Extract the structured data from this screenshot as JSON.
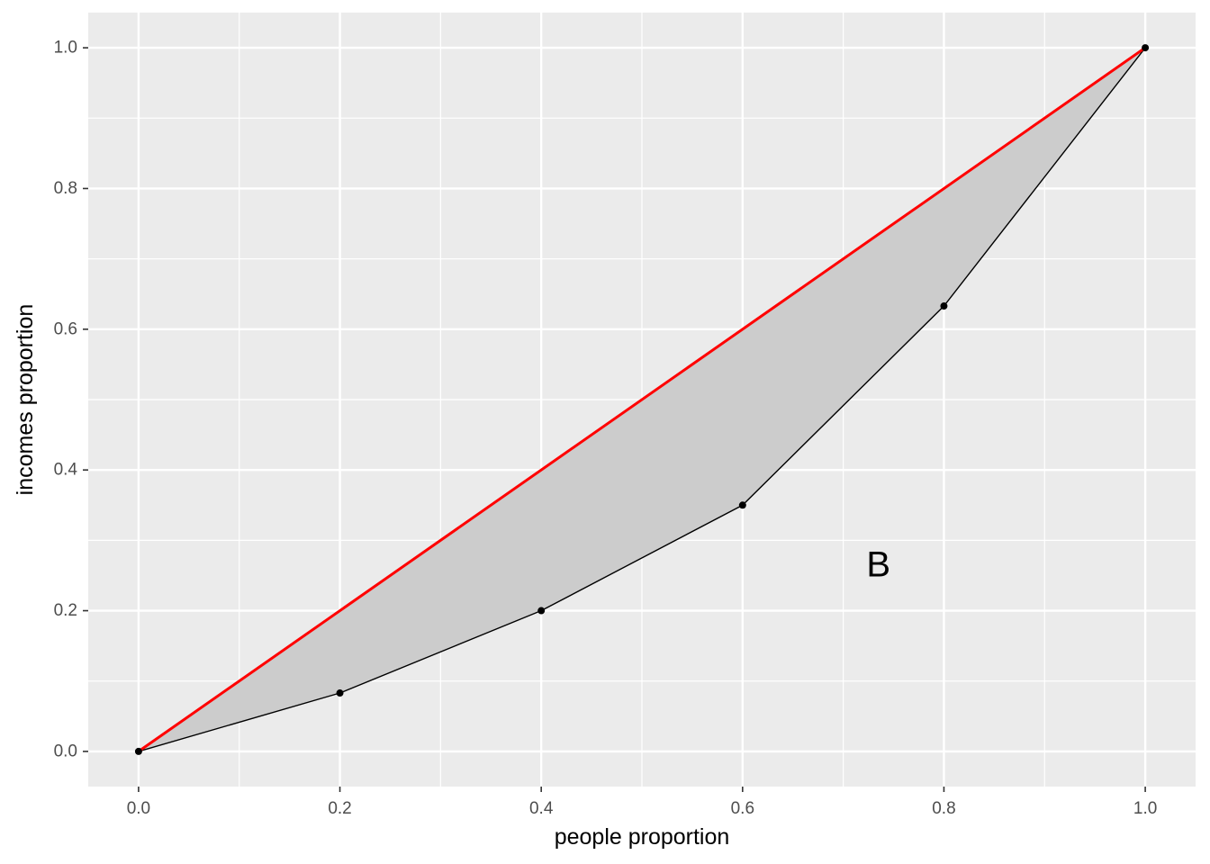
{
  "chart_data": {
    "type": "area",
    "title": "",
    "xlabel": "people proportion",
    "ylabel": "incomes proportion",
    "xlim": [
      -0.05,
      1.05
    ],
    "ylim": [
      -0.05,
      1.05
    ],
    "x_ticks": [
      0.0,
      0.2,
      0.4,
      0.6,
      0.8,
      1.0
    ],
    "x_tick_labels": [
      "0.0",
      "0.2",
      "0.4",
      "0.6",
      "0.8",
      "1.0"
    ],
    "y_ticks": [
      0.0,
      0.2,
      0.4,
      0.6,
      0.8,
      1.0
    ],
    "y_tick_labels": [
      "0.0",
      "0.2",
      "0.4",
      "0.6",
      "0.8",
      "1.0"
    ],
    "grid": true,
    "legend": "none",
    "lorenz_curve": {
      "x": [
        0.0,
        0.2,
        0.4,
        0.6,
        0.8,
        1.0
      ],
      "y": [
        0.0,
        0.083,
        0.2,
        0.35,
        0.633,
        1.0
      ],
      "line_color": "#000000"
    },
    "equality_line": {
      "x": [
        0.0,
        1.0
      ],
      "y": [
        0.0,
        1.0
      ],
      "color": "#ff0000"
    },
    "fill_color": "#cccccc",
    "panel_background": "#ebebeb",
    "annotations": [
      {
        "text": "B",
        "x": 0.735,
        "y": 0.265
      }
    ]
  }
}
